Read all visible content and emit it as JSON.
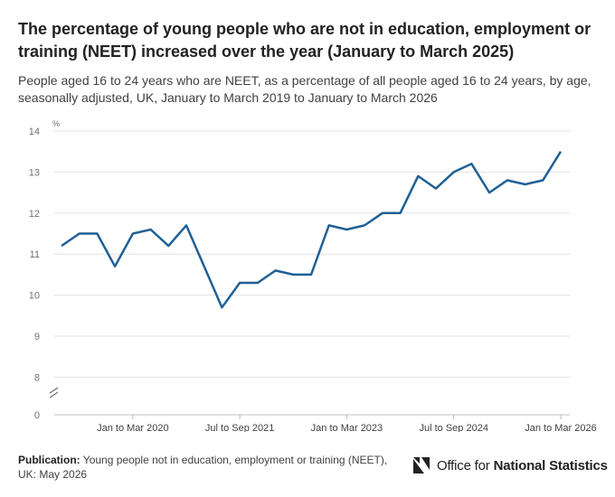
{
  "chart_data": {
    "type": "line",
    "title": "The percentage of young people who are not in education, employment or training (NEET) increased over the year (January to March 2025)",
    "subtitle": "People aged 16 to 24 years who are NEET, as a percentage of all people aged 16 to 24 years, by age, seasonally adjusted, UK, January to March 2019 to January to March 2026",
    "ylabel": "%",
    "ylim": [
      0,
      14
    ],
    "yticks": [
      "0",
      "8",
      "9",
      "10",
      "11",
      "12",
      "13",
      "14"
    ],
    "y_axis_break": true,
    "grid": true,
    "x_tick_labels": [
      "Jan to Mar 2020",
      "Jul to Sep 2021",
      "Jan to Mar 2023",
      "Jul to Sep 2024",
      "Jan to Mar 2026"
    ],
    "series": [
      {
        "color": "#206095",
        "values": [
          11.2,
          11.5,
          11.5,
          10.7,
          11.5,
          11.6,
          11.2,
          11.7,
          10.7,
          9.7,
          10.3,
          10.3,
          10.6,
          10.5,
          10.5,
          11.7,
          11.6,
          11.7,
          12.0,
          12.0,
          12.9,
          12.6,
          13.0,
          13.2,
          12.5,
          12.8,
          12.7,
          12.8,
          13.5
        ]
      }
    ]
  },
  "footer": {
    "publication_label": "Publication:",
    "publication_text": "Young people not in education, employment or training (NEET), UK: May 2026"
  },
  "logo": {
    "text_regular": "Office for",
    "text_bold": "National Statistics"
  }
}
